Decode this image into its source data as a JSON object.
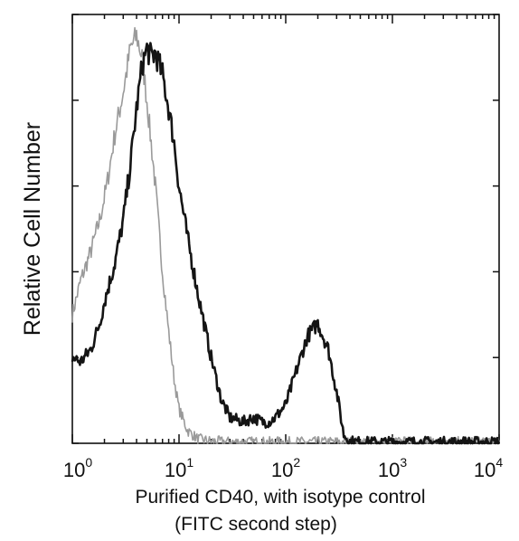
{
  "chart_data": {
    "type": "line",
    "title": "",
    "xlabel_lines": [
      "Purified CD40, with isotype control",
      "(FITC second step)"
    ],
    "ylabel": "Relative Cell Number",
    "x_scale": "log",
    "xlim": [
      1,
      10000
    ],
    "ylim": [
      0,
      1
    ],
    "x_ticks": [
      {
        "base": "10",
        "exp": "0",
        "value": 1
      },
      {
        "base": "10",
        "exp": "1",
        "value": 10
      },
      {
        "base": "10",
        "exp": "2",
        "value": 100
      },
      {
        "base": "10",
        "exp": "3",
        "value": 1000
      },
      {
        "base": "10",
        "exp": "4",
        "value": 10000
      }
    ],
    "y_ticks": [
      0,
      0.2,
      0.4,
      0.6,
      0.8,
      1.0
    ],
    "grid": false,
    "legend": "none",
    "series": [
      {
        "role": "isotype-control",
        "color": "#9a9a9a",
        "x": [
          1,
          1.2,
          1.5,
          1.8,
          2.1,
          2.5,
          3.0,
          3.5,
          4.0,
          4.5,
          5.0,
          6.0,
          7.0,
          8.0,
          9.0,
          10,
          12,
          15,
          20,
          30,
          50,
          100,
          10000
        ],
        "y": [
          0.3,
          0.38,
          0.45,
          0.52,
          0.6,
          0.72,
          0.82,
          0.92,
          0.95,
          0.9,
          0.8,
          0.6,
          0.4,
          0.26,
          0.15,
          0.08,
          0.03,
          0.01,
          0.005,
          0.003,
          0.003,
          0.003,
          0.003
        ]
      },
      {
        "role": "purified-cd40",
        "color": "#141414",
        "x": [
          1,
          1.2,
          1.5,
          1.8,
          2.0,
          2.5,
          3.0,
          3.5,
          4.0,
          4.5,
          5.0,
          5.5,
          6.0,
          7.0,
          8.0,
          9.0,
          10,
          12,
          15,
          20,
          25,
          30,
          40,
          50,
          60,
          70,
          80,
          100,
          130,
          160,
          200,
          250,
          300,
          350,
          400,
          500,
          1000,
          10000
        ],
        "y": [
          0.2,
          0.19,
          0.22,
          0.28,
          0.33,
          0.42,
          0.52,
          0.65,
          0.78,
          0.88,
          0.92,
          0.9,
          0.91,
          0.86,
          0.78,
          0.7,
          0.6,
          0.48,
          0.35,
          0.2,
          0.1,
          0.06,
          0.05,
          0.06,
          0.05,
          0.05,
          0.06,
          0.09,
          0.18,
          0.25,
          0.28,
          0.22,
          0.12,
          0.02,
          0.005,
          0.003,
          0.003,
          0.003
        ]
      }
    ]
  }
}
